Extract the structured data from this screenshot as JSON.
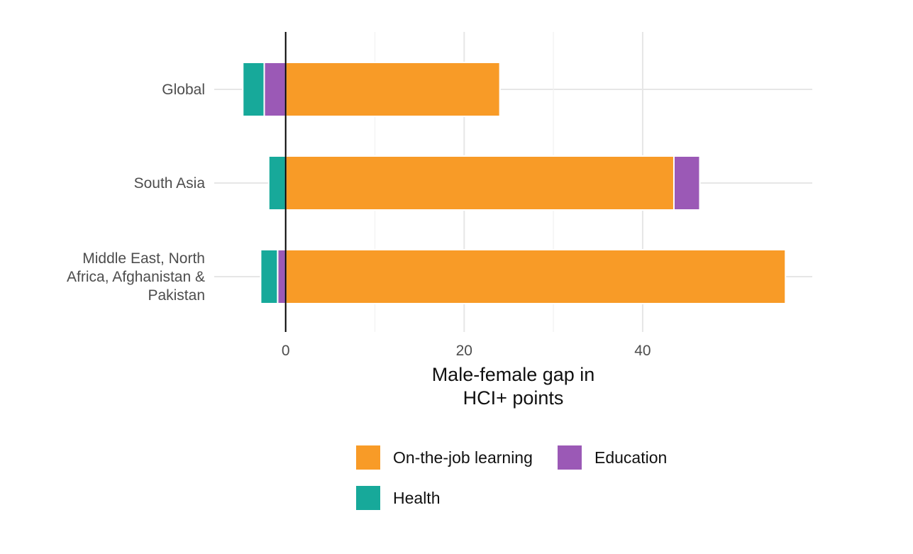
{
  "chart_data": {
    "type": "bar",
    "orientation": "horizontal",
    "stacked": true,
    "categories": [
      [
        "Global"
      ],
      [
        "South Asia"
      ],
      [
        "Middle East, North",
        "Africa, Afghanistan &",
        "Pakistan"
      ]
    ],
    "series": [
      {
        "name": "On-the-job learning",
        "color": "#F89B27",
        "values": [
          24,
          43.5,
          56
        ]
      },
      {
        "name": "Education",
        "color": "#9B59B6",
        "values": [
          -2.4,
          2.9,
          -0.9
        ]
      },
      {
        "name": "Health",
        "color": "#17A99A",
        "values": [
          -2.4,
          -1.9,
          -1.9
        ]
      }
    ],
    "x_ticks": [
      0,
      20,
      40
    ],
    "xlim": [
      -8,
      59
    ],
    "xlabel": [
      "Male-female gap in",
      "HCI+ points"
    ],
    "ylabel": "",
    "grid": true,
    "zero_line": true,
    "legend_position": "bottom"
  }
}
